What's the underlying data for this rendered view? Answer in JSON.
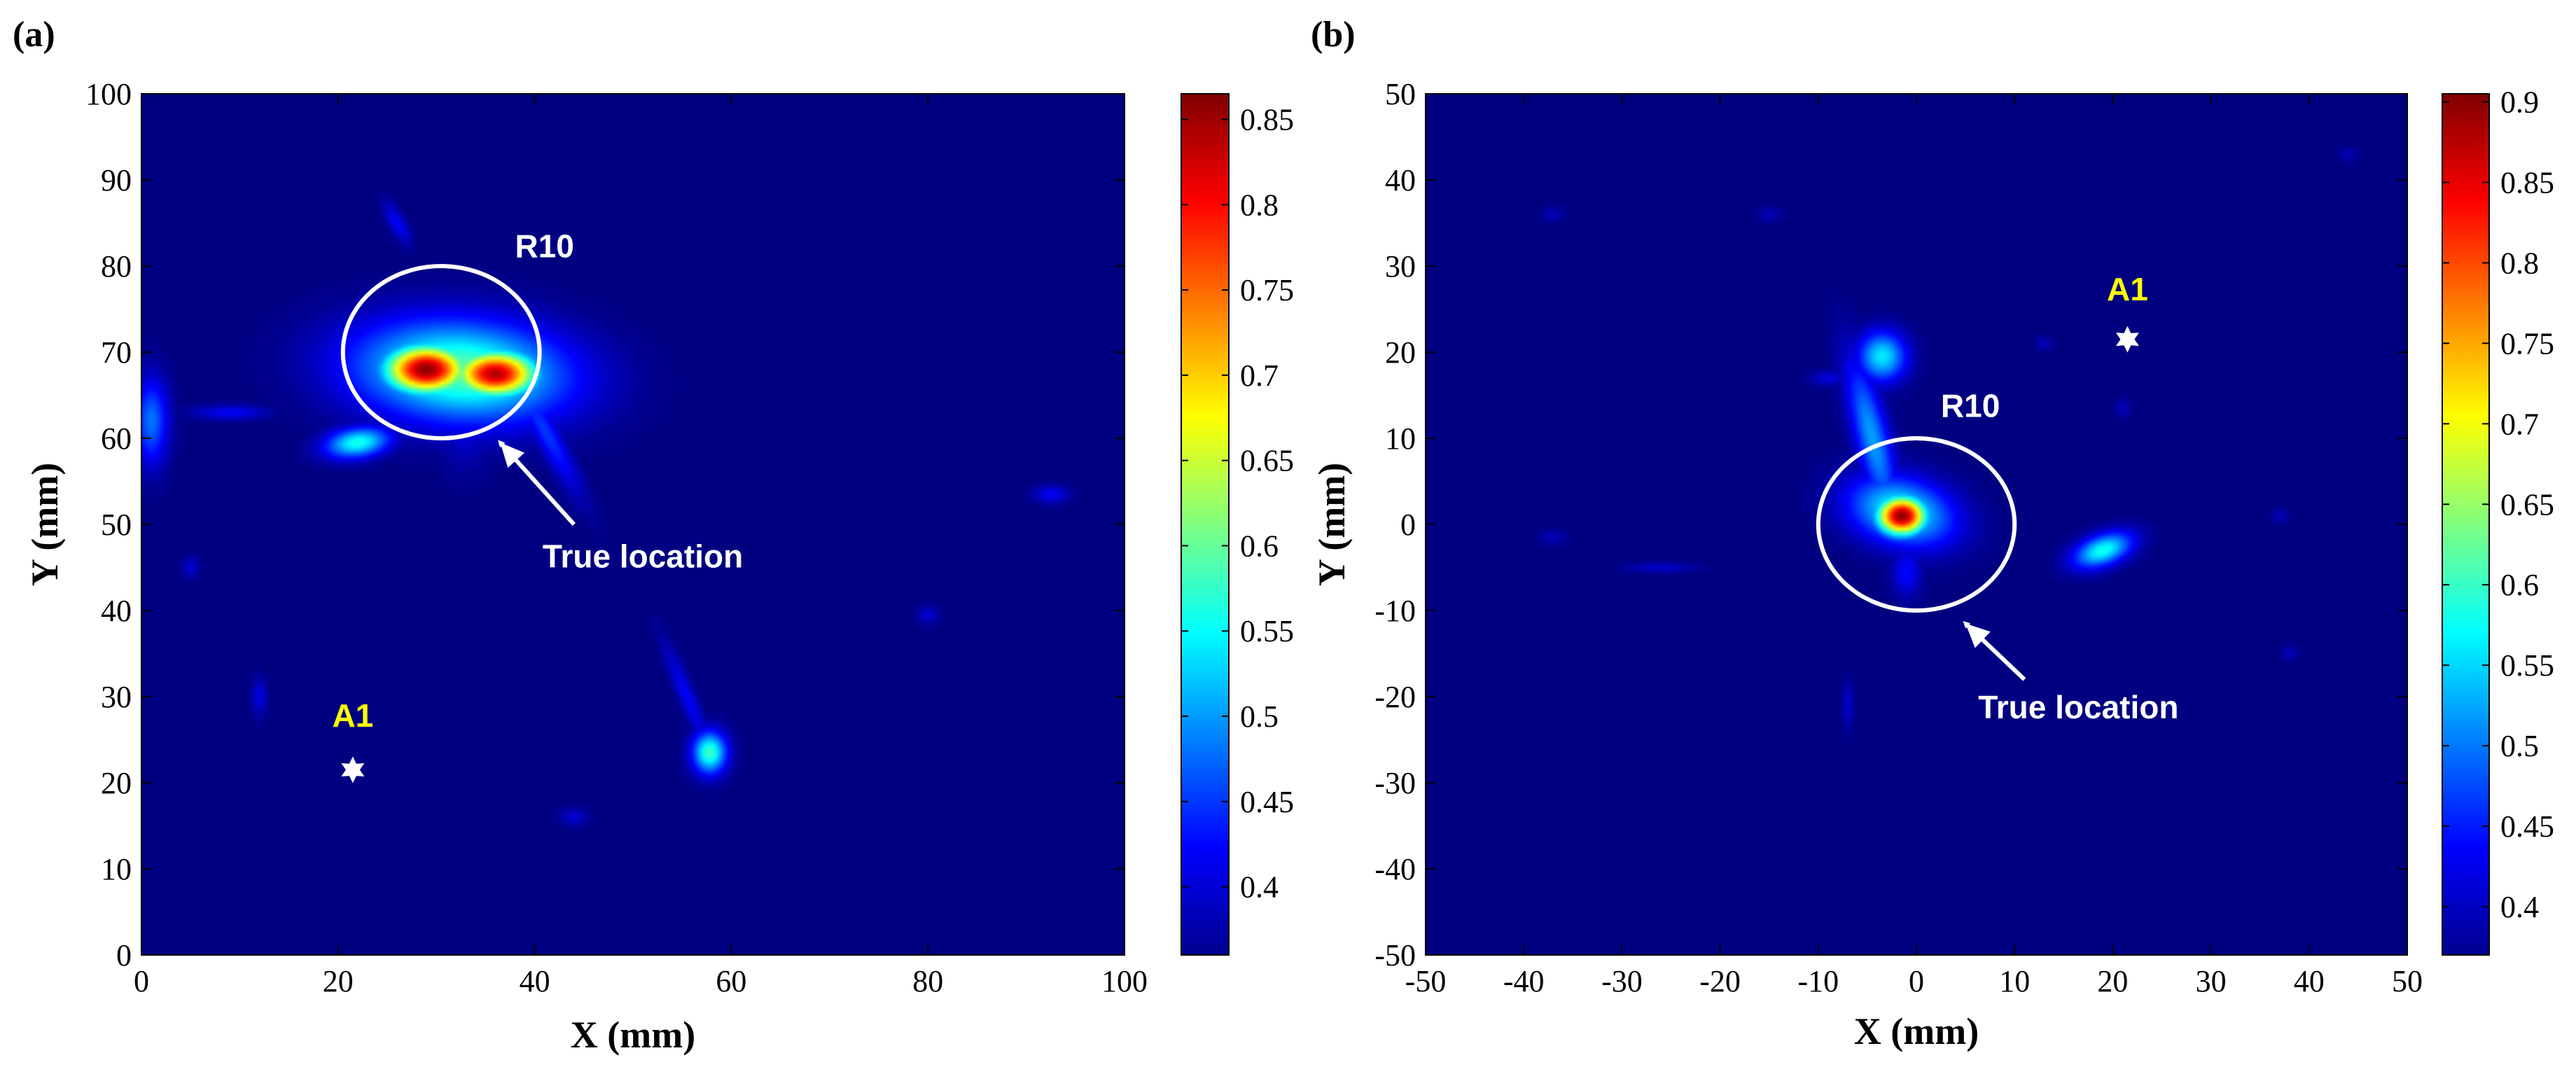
{
  "chart_data": [
    {
      "panel": "(a)",
      "type": "heatmap",
      "xlabel": "X (mm)",
      "ylabel": "Y (mm)",
      "xlim": [
        0,
        100
      ],
      "ylim": [
        0,
        100
      ],
      "xticks": [
        0,
        20,
        40,
        60,
        80,
        100
      ],
      "yticks": [
        0,
        10,
        20,
        30,
        40,
        50,
        60,
        70,
        80,
        90,
        100
      ],
      "colorbar": {
        "range": [
          0.36,
          0.865
        ],
        "ticks": [
          0.4,
          0.45,
          0.5,
          0.55,
          0.6,
          0.65,
          0.7,
          0.75,
          0.8,
          0.85
        ],
        "tick_labels": [
          "0.4",
          "0.45",
          "0.5",
          "0.55",
          "0.6",
          "0.65",
          "0.7",
          "0.75",
          "0.8",
          "0.85"
        ]
      },
      "background_value": 0.36,
      "blobs": [
        {
          "x": 29,
          "y": 68,
          "sx": 3.0,
          "sy": 2.0,
          "rot": 0,
          "v": 0.86
        },
        {
          "x": 36,
          "y": 67.5,
          "sx": 3.0,
          "sy": 1.9,
          "rot": 0,
          "v": 0.84
        },
        {
          "x": 32.5,
          "y": 67.8,
          "sx": 7.5,
          "sy": 4.0,
          "rot": -5,
          "v": 0.6
        },
        {
          "x": 33,
          "y": 66,
          "sx": 2.0,
          "sy": 5.0,
          "rot": 0,
          "v": 0.45
        },
        {
          "x": 22,
          "y": 59.5,
          "sx": 2.3,
          "sy": 1.2,
          "rot": 10,
          "v": 0.56
        },
        {
          "x": 41,
          "y": 61,
          "sx": 0.9,
          "sy": 5.5,
          "rot": 25,
          "v": 0.45
        },
        {
          "x": 57.8,
          "y": 23.5,
          "sx": 1.2,
          "sy": 1.7,
          "rot": 0,
          "v": 0.58
        },
        {
          "x": 55.5,
          "y": 30,
          "sx": 0.6,
          "sy": 4.5,
          "rot": 20,
          "v": 0.42
        },
        {
          "x": 1,
          "y": 62,
          "sx": 1.2,
          "sy": 3.5,
          "rot": 0,
          "v": 0.48
        },
        {
          "x": 9,
          "y": 63,
          "sx": 2.5,
          "sy": 0.6,
          "rot": 0,
          "v": 0.42
        },
        {
          "x": 26,
          "y": 85,
          "sx": 0.6,
          "sy": 1.8,
          "rot": 25,
          "v": 0.42
        },
        {
          "x": 12,
          "y": 30,
          "sx": 0.5,
          "sy": 1.5,
          "rot": 0,
          "v": 0.41
        },
        {
          "x": 92.5,
          "y": 53.5,
          "sx": 1.2,
          "sy": 0.7,
          "rot": 0,
          "v": 0.42
        },
        {
          "x": 5,
          "y": 45,
          "sx": 0.6,
          "sy": 0.9,
          "rot": 0,
          "v": 0.4
        },
        {
          "x": 80,
          "y": 39.5,
          "sx": 0.8,
          "sy": 0.7,
          "rot": 0,
          "v": 0.4
        },
        {
          "x": 44,
          "y": 16,
          "sx": 1.0,
          "sy": 0.7,
          "rot": 0,
          "v": 0.4
        }
      ],
      "annotations": {
        "circle_label": "R10",
        "arrow_label": "True location",
        "source_label": "A1",
        "circle": {
          "cx": 30.5,
          "cy": 70,
          "r": 10
        },
        "source_point": {
          "x": 21.5,
          "y": 21.5
        },
        "label_point": {
          "x": 41,
          "y": 81
        },
        "arrow_from": {
          "x": 44,
          "y": 50
        },
        "arrow_to": {
          "x": 36.5,
          "y": 59.5
        },
        "arrow_text_point": {
          "x": 51,
          "y": 45
        },
        "source_text_point": {
          "x": 21.5,
          "y": 26.5
        }
      }
    },
    {
      "panel": "(b)",
      "type": "heatmap",
      "xlabel": "X (mm)",
      "ylabel": "Y (mm)",
      "xlim": [
        -50,
        50
      ],
      "ylim": [
        -50,
        50
      ],
      "xticks": [
        -50,
        -40,
        -30,
        -20,
        -10,
        0,
        10,
        20,
        30,
        40,
        50
      ],
      "yticks": [
        -50,
        -40,
        -30,
        -20,
        -10,
        0,
        10,
        20,
        30,
        40,
        50
      ],
      "colorbar": {
        "range": [
          0.37,
          0.905
        ],
        "ticks": [
          0.4,
          0.45,
          0.5,
          0.55,
          0.6,
          0.65,
          0.7,
          0.75,
          0.8,
          0.85,
          0.9
        ],
        "tick_labels": [
          "0.4",
          "0.45",
          "0.5",
          "0.55",
          "0.6",
          "0.65",
          "0.7",
          "0.75",
          "0.8",
          "0.85",
          "0.9"
        ]
      },
      "background_value": 0.37,
      "blobs": [
        {
          "x": -1.5,
          "y": 1,
          "sx": 1.8,
          "sy": 1.6,
          "rot": 0,
          "v": 0.9
        },
        {
          "x": -1.5,
          "y": 1.5,
          "sx": 3.8,
          "sy": 2.6,
          "rot": -20,
          "v": 0.58
        },
        {
          "x": -4.5,
          "y": 10,
          "sx": 1.2,
          "sy": 6.5,
          "rot": 12,
          "v": 0.52
        },
        {
          "x": -3.5,
          "y": 19.5,
          "sx": 1.7,
          "sy": 2.0,
          "rot": 0,
          "v": 0.56
        },
        {
          "x": -1,
          "y": -5.5,
          "sx": 1.0,
          "sy": 2.0,
          "rot": 0,
          "v": 0.44
        },
        {
          "x": 19,
          "y": -3,
          "sx": 2.2,
          "sy": 1.2,
          "rot": 25,
          "v": 0.58
        },
        {
          "x": -9,
          "y": 17,
          "sx": 1.2,
          "sy": 0.6,
          "rot": 0,
          "v": 0.42
        },
        {
          "x": -26,
          "y": -5,
          "sx": 2.5,
          "sy": 0.4,
          "rot": 0,
          "v": 0.41
        },
        {
          "x": -7,
          "y": -21,
          "sx": 0.4,
          "sy": 2.0,
          "rot": 0,
          "v": 0.41
        },
        {
          "x": -37,
          "y": -1.5,
          "sx": 1.0,
          "sy": 0.6,
          "rot": 0,
          "v": 0.4
        },
        {
          "x": -37,
          "y": 36,
          "sx": 0.8,
          "sy": 0.6,
          "rot": 0,
          "v": 0.4
        },
        {
          "x": -15,
          "y": 36,
          "sx": 0.8,
          "sy": 0.6,
          "rot": 0,
          "v": 0.4
        },
        {
          "x": 44,
          "y": 43,
          "sx": 0.7,
          "sy": 0.6,
          "rot": 0,
          "v": 0.4
        },
        {
          "x": 37,
          "y": 1,
          "sx": 0.6,
          "sy": 0.6,
          "rot": 0,
          "v": 0.4
        },
        {
          "x": 21,
          "y": 13.5,
          "sx": 0.6,
          "sy": 0.8,
          "rot": 0,
          "v": 0.4
        },
        {
          "x": 38,
          "y": -15,
          "sx": 0.6,
          "sy": 0.6,
          "rot": 0,
          "v": 0.4
        },
        {
          "x": 13,
          "y": 21,
          "sx": 0.6,
          "sy": 0.6,
          "rot": 0,
          "v": 0.4
        }
      ],
      "annotations": {
        "circle_label": "R10",
        "arrow_label": "True location",
        "source_label": "A1",
        "circle": {
          "cx": 0,
          "cy": 0,
          "r": 10
        },
        "source_point": {
          "x": 21.5,
          "y": 21.5
        },
        "label_point": {
          "x": 5.5,
          "y": 12.5
        },
        "arrow_from": {
          "x": 11,
          "y": -18
        },
        "arrow_to": {
          "x": 5,
          "y": -11.5
        },
        "arrow_text_point": {
          "x": 16.5,
          "y": -22.5
        },
        "source_text_point": {
          "x": 21.5,
          "y": 26
        }
      }
    }
  ]
}
